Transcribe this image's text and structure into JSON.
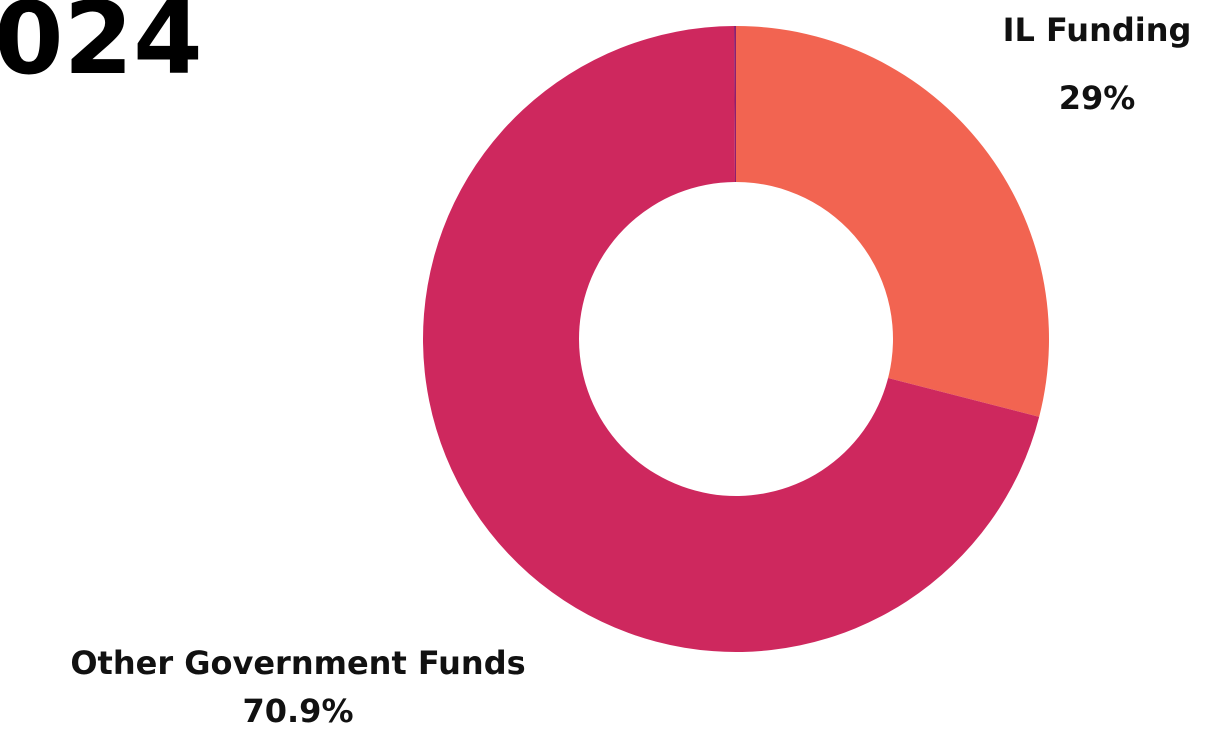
{
  "heading": {
    "visible_text": "024"
  },
  "chart_data": {
    "type": "pie",
    "variant": "donut",
    "start_angle_deg": 0,
    "direction": "clockwise",
    "slices": [
      {
        "label": "IL Funding",
        "value": 29,
        "display_value": "29%",
        "color": "#F26451"
      },
      {
        "label": "Other Government Funds",
        "value": 70.9,
        "display_value": "70.9%",
        "color": "#CE285E"
      },
      {
        "label": "",
        "value": 0.1,
        "display_value": "",
        "color": "#8E1F6E"
      }
    ]
  }
}
